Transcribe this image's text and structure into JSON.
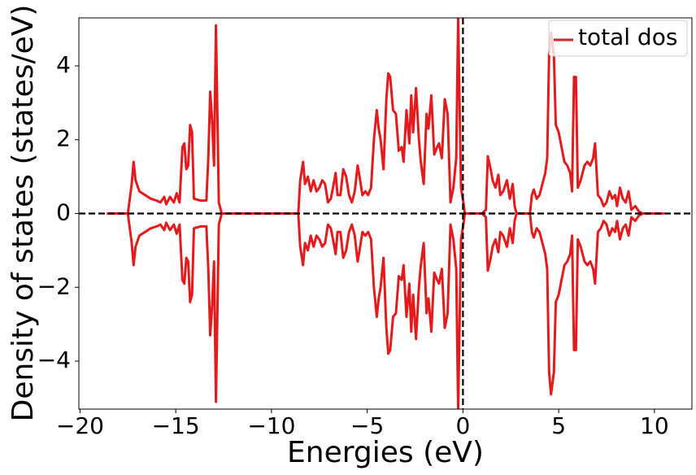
{
  "chart_data": {
    "type": "line",
    "xlabel": "Energies (eV)",
    "ylabel": "Density of states (states/eV)",
    "xlim": [
      -20.06,
      11.96
    ],
    "ylim": [
      -5.3,
      5.3
    ],
    "xticks": [
      {
        "value": -20,
        "label": "−20"
      },
      {
        "value": -15,
        "label": "−15"
      },
      {
        "value": -10,
        "label": "−10"
      },
      {
        "value": -5,
        "label": "−5"
      },
      0,
      5,
      10
    ],
    "yticks": [
      {
        "value": -4,
        "label": "−4"
      },
      {
        "value": -2,
        "label": "−2"
      },
      0,
      2,
      4
    ],
    "hline": 0,
    "vline": 0,
    "legend": "upper right",
    "x": [
      -18.6,
      -17.5,
      -17.3,
      -17.2,
      -17.1,
      -16.9,
      -16.6,
      -16.3,
      -16.0,
      -15.8,
      -15.6,
      -15.5,
      -15.3,
      -15.1,
      -14.95,
      -14.8,
      -14.65,
      -14.55,
      -14.45,
      -14.35,
      -14.25,
      -14.15,
      -14.05,
      -13.7,
      -13.4,
      -13.3,
      -13.2,
      -13.1,
      -13.0,
      -12.9,
      -12.75,
      -12.6,
      -8.6,
      -8.5,
      -8.35,
      -8.25,
      -8.1,
      -7.95,
      -7.8,
      -7.65,
      -7.5,
      -7.35,
      -7.2,
      -7.05,
      -6.9,
      -6.75,
      -6.65,
      -6.55,
      -6.4,
      -6.25,
      -6.1,
      -5.95,
      -5.8,
      -5.65,
      -5.5,
      -5.4,
      -5.25,
      -5.1,
      -4.95,
      -4.8,
      -4.65,
      -4.5,
      -4.4,
      -4.3,
      -4.15,
      -4.0,
      -3.9,
      -3.8,
      -3.65,
      -3.5,
      -3.35,
      -3.2,
      -3.1,
      -2.95,
      -2.8,
      -2.7,
      -2.6,
      -2.45,
      -2.3,
      -2.2,
      -2.05,
      -1.9,
      -1.8,
      -1.65,
      -1.5,
      -1.35,
      -1.25,
      -1.1,
      -0.95,
      -0.8,
      -0.65,
      -0.5,
      -0.35,
      -0.25,
      -0.1,
      0.05,
      0.1,
      1.0,
      1.2,
      1.3,
      1.45,
      1.55,
      1.7,
      1.85,
      1.95,
      2.1,
      2.3,
      2.45,
      2.6,
      2.7,
      2.8,
      3.5,
      3.6,
      3.7,
      3.85,
      4.0,
      4.1,
      4.3,
      4.4,
      4.5,
      4.6,
      4.75,
      4.85,
      5.0,
      5.15,
      5.3,
      5.45,
      5.6,
      5.7,
      5.8,
      5.9,
      6.0,
      6.15,
      6.35,
      6.5,
      6.65,
      6.8,
      6.9,
      7.05,
      7.2,
      7.35,
      7.5,
      7.65,
      7.8,
      7.95,
      8.05,
      8.2,
      8.35,
      8.5,
      8.65,
      8.8,
      9.0,
      9.2,
      9.4,
      10.5
    ],
    "series": [
      {
        "name": "total dos",
        "color": "#e41a1c",
        "values": [
          0,
          0,
          0.8,
          1.4,
          0.9,
          0.6,
          0.5,
          0.4,
          0.35,
          0.3,
          0.45,
          0.25,
          0.45,
          0.3,
          0.55,
          0.3,
          1.8,
          1.9,
          1.2,
          1.3,
          2.4,
          2.2,
          0.4,
          0.35,
          0.35,
          1.5,
          3.3,
          2.5,
          1.3,
          5.1,
          0.3,
          0,
          0,
          0.9,
          1.4,
          0.8,
          1.0,
          0.6,
          0.9,
          0.6,
          0.7,
          0.9,
          0.8,
          0.3,
          0.4,
          0.8,
          1.1,
          0.5,
          0.5,
          1.2,
          1.0,
          0.5,
          0.3,
          0.6,
          1.3,
          1.0,
          0.5,
          0.6,
          0.5,
          0.7,
          2.0,
          2.8,
          2.3,
          2.0,
          1.2,
          3.1,
          3.8,
          3.7,
          2.8,
          2.7,
          1.7,
          1.8,
          1.4,
          2.8,
          1.9,
          3.2,
          2.2,
          3.4,
          2.0,
          1.4,
          0.8,
          2.7,
          2.3,
          3.2,
          1.6,
          1.8,
          1.9,
          1.5,
          3.1,
          2.7,
          0.3,
          0.7,
          1.5,
          5.3,
          0.7,
          0.2,
          0,
          0,
          0.1,
          1.55,
          1.2,
          0.9,
          0.7,
          1.05,
          0.5,
          0.6,
          0.9,
          0.4,
          0.8,
          0.2,
          0,
          0,
          0.5,
          0.65,
          0.4,
          0.5,
          0.7,
          1.1,
          1.5,
          4.3,
          4.9,
          4.3,
          2.4,
          2.2,
          1.8,
          1.4,
          1.3,
          1.1,
          0.6,
          3.7,
          3.7,
          0.7,
          0.9,
          1.3,
          1.4,
          1.3,
          1.5,
          1.9,
          0.5,
          0.4,
          0.2,
          0.3,
          0.6,
          0.4,
          0.5,
          0.2,
          0.7,
          0.4,
          0.3,
          0.6,
          0.1,
          0.2,
          0.05,
          0,
          0
        ]
      },
      {
        "color": "#e41a1c",
        "values": [
          0,
          0,
          -0.8,
          -1.4,
          -0.9,
          -0.6,
          -0.5,
          -0.4,
          -0.35,
          -0.3,
          -0.45,
          -0.25,
          -0.45,
          -0.3,
          -0.55,
          -0.3,
          -1.8,
          -1.9,
          -1.2,
          -1.3,
          -2.4,
          -2.2,
          -0.4,
          -0.35,
          -0.35,
          -1.5,
          -3.3,
          -2.5,
          -1.3,
          -5.1,
          -0.3,
          0,
          0,
          -0.9,
          -1.4,
          -0.8,
          -1.0,
          -0.6,
          -0.9,
          -0.6,
          -0.7,
          -0.9,
          -0.8,
          -0.3,
          -0.4,
          -0.8,
          -1.1,
          -0.5,
          -0.5,
          -1.2,
          -1.0,
          -0.5,
          -0.3,
          -0.6,
          -1.3,
          -1.0,
          -0.5,
          -0.6,
          -0.5,
          -0.7,
          -2.0,
          -2.8,
          -2.3,
          -2.0,
          -1.2,
          -3.1,
          -3.8,
          -3.7,
          -2.8,
          -2.7,
          -1.7,
          -1.8,
          -1.4,
          -2.8,
          -1.9,
          -3.2,
          -2.2,
          -3.4,
          -2.0,
          -1.4,
          -0.8,
          -2.7,
          -2.3,
          -3.2,
          -1.6,
          -1.8,
          -1.9,
          -1.5,
          -3.1,
          -2.7,
          -0.3,
          -0.7,
          -1.5,
          -5.3,
          -0.7,
          -0.2,
          0,
          0,
          -0.1,
          -1.55,
          -1.2,
          -0.9,
          -0.7,
          -1.05,
          -0.5,
          -0.6,
          -0.9,
          -0.4,
          -0.8,
          -0.2,
          0,
          0,
          -0.5,
          -0.65,
          -0.4,
          -0.5,
          -0.7,
          -1.1,
          -1.5,
          -4.3,
          -4.9,
          -4.3,
          -2.4,
          -2.2,
          -1.8,
          -1.4,
          -1.3,
          -1.1,
          -0.6,
          -3.7,
          -3.7,
          -0.7,
          -0.9,
          -1.3,
          -1.4,
          -1.3,
          -1.5,
          -1.9,
          -0.5,
          -0.4,
          -0.2,
          -0.3,
          -0.6,
          -0.4,
          -0.5,
          -0.2,
          -0.7,
          -0.4,
          -0.3,
          -0.6,
          -0.1,
          -0.2,
          -0.05,
          0,
          0
        ]
      }
    ]
  }
}
